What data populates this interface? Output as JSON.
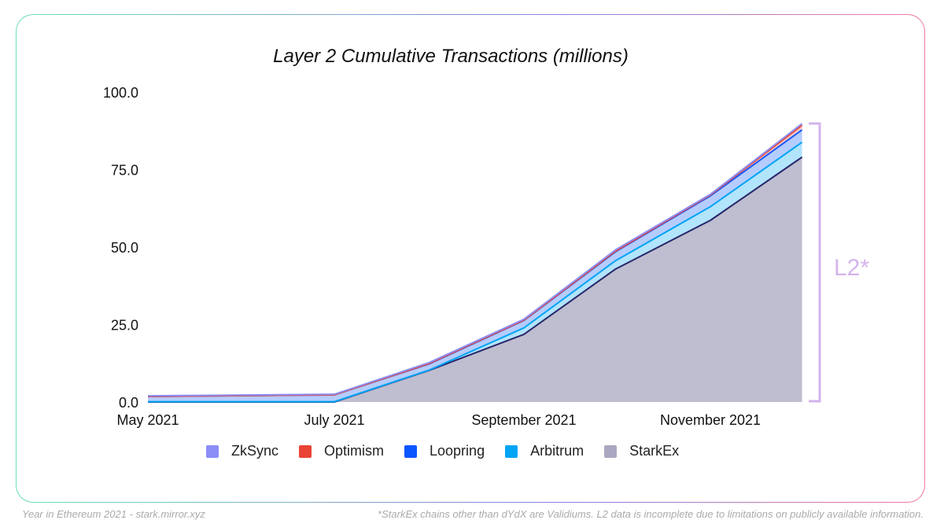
{
  "chart_data": {
    "type": "area",
    "stacked": true,
    "title": "Layer 2 Cumulative Transactions (millions)",
    "xlabel": "",
    "ylabel": "",
    "x": [
      "2021-05-01",
      "2021-07-01",
      "2021-08-01",
      "2021-09-01",
      "2021-10-01",
      "2021-11-01",
      "2021-12-01"
    ],
    "x_ticks": [
      {
        "date": "2021-05-01",
        "label": "May 2021"
      },
      {
        "date": "2021-07-01",
        "label": "July 2021"
      },
      {
        "date": "2021-09-01",
        "label": "September 2021"
      },
      {
        "date": "2021-11-01",
        "label": "November 2021"
      }
    ],
    "ylim": [
      0,
      100
    ],
    "y_ticks": [
      "0.0",
      "25.0",
      "50.0",
      "75.0",
      "100.0"
    ],
    "grid": false,
    "legend_position": "bottom",
    "series": [
      {
        "name": "StarkEx",
        "color": "#a9a8c0",
        "line": "#26266a",
        "values": [
          0,
          0,
          10.2,
          21.8,
          42.9,
          58.6,
          79.0
        ]
      },
      {
        "name": "Arbitrum",
        "color": "#00a4f5",
        "line": "#00a4f5",
        "values": [
          0.1,
          0.1,
          0.1,
          2.1,
          2.7,
          4.4,
          4.8
        ]
      },
      {
        "name": "Loopring",
        "color": "#0b55ff",
        "line": "#1557ff",
        "values": [
          1.7,
          2.2,
          2.0,
          2.4,
          2.9,
          3.5,
          4.0
        ]
      },
      {
        "name": "Optimism",
        "color": "#ea4335",
        "line": "#ea4335",
        "values": [
          0,
          0,
          0.1,
          0.1,
          0.2,
          0.3,
          1.5
        ]
      },
      {
        "name": "ZkSync",
        "color": "#8b8ef5",
        "line": "#8b8ef5",
        "values": [
          0.2,
          0.2,
          0.3,
          0.3,
          0.4,
          0.2,
          0.5
        ]
      }
    ],
    "legend_order": [
      "ZkSync",
      "Optimism",
      "Loopring",
      "Arbitrum",
      "StarkEx"
    ],
    "annotation": "L2*"
  },
  "footer": {
    "left": "Year in Ethereum 2021 - stark.mirror.xyz",
    "right": "*StarkEx chains other than dYdX are Validiums. L2 data is incomplete due to limitations on publicly available information."
  }
}
